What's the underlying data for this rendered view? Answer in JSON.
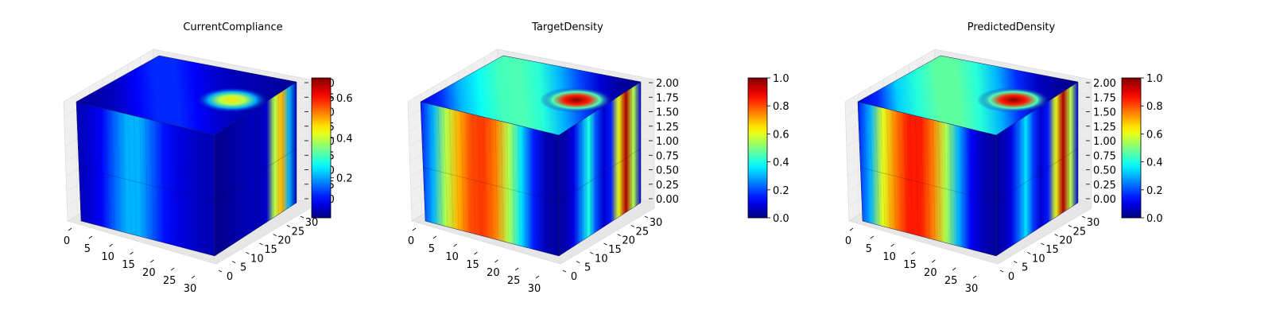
{
  "chart_data": [
    {
      "type": "heatmap",
      "title": "CurrentCompliance",
      "colormap": "jet",
      "view": "3d-voxel",
      "x_ticks": [
        "0",
        "5",
        "10",
        "15",
        "20",
        "25",
        "30"
      ],
      "y_ticks": [
        "0",
        "5",
        "10",
        "15",
        "20",
        "25",
        "30"
      ],
      "z_ticks": [
        "0.00",
        "0.25",
        "0.50",
        "0.75",
        "1.00",
        "1.25",
        "1.50",
        "1.75",
        "2.00"
      ],
      "colorbar_ticks": [
        "0.2",
        "0.4",
        "0.6"
      ],
      "colorbar_range": [
        0.0,
        0.7
      ],
      "color_stops_front": [
        0.05,
        0.08,
        0.12,
        0.22,
        0.3,
        0.3,
        0.22,
        0.14,
        0.1,
        0.08,
        0.06,
        0.05
      ],
      "color_stops_side": [
        0.02,
        0.02,
        0.03,
        0.04,
        0.05,
        0.06,
        0.05,
        0.08,
        0.55,
        0.7,
        0.3,
        0.05
      ],
      "hotspot": {
        "level": 0.65
      }
    },
    {
      "type": "heatmap",
      "title": "TargetDensity",
      "colormap": "jet",
      "view": "3d-voxel",
      "x_ticks": [
        "0",
        "5",
        "10",
        "15",
        "20",
        "25",
        "30"
      ],
      "y_ticks": [
        "0",
        "5",
        "10",
        "15",
        "20",
        "25",
        "30"
      ],
      "z_ticks": [
        "0.00",
        "0.25",
        "0.50",
        "0.75",
        "1.00",
        "1.25",
        "1.50",
        "1.75",
        "2.00"
      ],
      "colorbar_ticks": [
        "0.0",
        "0.2",
        "0.4",
        "0.6",
        "0.8",
        "1.0"
      ],
      "colorbar_range": [
        0.0,
        1.0
      ],
      "color_stops_front": [
        0.15,
        0.3,
        0.55,
        0.7,
        0.8,
        0.82,
        0.75,
        0.55,
        0.35,
        0.15,
        0.05,
        0.03
      ],
      "color_stops_side": [
        0.03,
        0.05,
        0.1,
        0.25,
        0.4,
        0.2,
        0.08,
        0.15,
        0.6,
        0.95,
        0.55,
        0.08
      ],
      "hotspot": {
        "level": 1.0
      }
    },
    {
      "type": "heatmap",
      "title": "PredictedDensity",
      "colormap": "jet",
      "view": "3d-voxel",
      "x_ticks": [
        "0",
        "5",
        "10",
        "15",
        "20",
        "25",
        "30"
      ],
      "y_ticks": [
        "0",
        "5",
        "10",
        "15",
        "20",
        "25",
        "30"
      ],
      "z_ticks": [
        "0.00",
        "0.25",
        "0.50",
        "0.75",
        "1.00",
        "1.25",
        "1.50",
        "1.75",
        "2.00"
      ],
      "colorbar_ticks": [
        "0.0",
        "0.2",
        "0.4",
        "0.6",
        "0.8",
        "1.0"
      ],
      "colorbar_range": [
        0.0,
        1.0
      ],
      "color_stops_front": [
        0.15,
        0.3,
        0.6,
        0.75,
        0.85,
        0.85,
        0.75,
        0.55,
        0.3,
        0.12,
        0.05,
        0.03
      ],
      "color_stops_side": [
        0.03,
        0.05,
        0.1,
        0.22,
        0.35,
        0.18,
        0.08,
        0.15,
        0.6,
        0.95,
        0.55,
        0.08
      ],
      "hotspot": {
        "level": 1.0
      }
    }
  ]
}
